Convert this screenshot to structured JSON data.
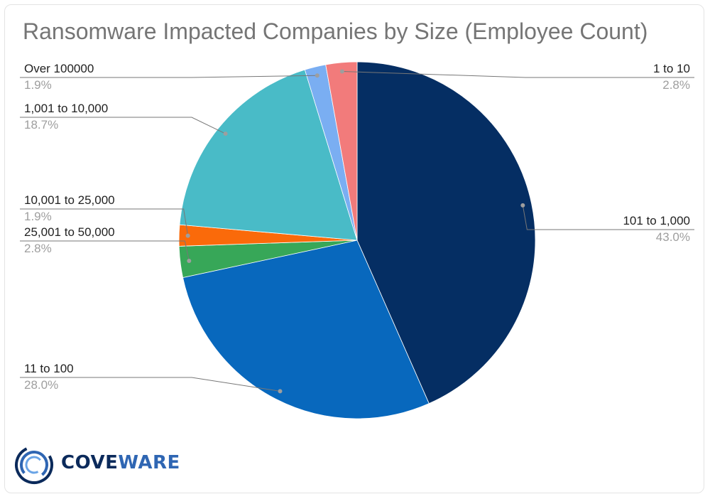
{
  "chart_data": {
    "type": "pie",
    "title": "Ransomware Impacted Companies by Size (Employee Count)",
    "start_angle_deg": 0,
    "direction": "clockwise",
    "slices": [
      {
        "label": "101 to 1,000",
        "value": 43.0,
        "display": "43.0%",
        "color": "#052e63"
      },
      {
        "label": "11 to 100",
        "value": 28.0,
        "display": "28.0%",
        "color": "#0868bd"
      },
      {
        "label": "25,001 to 50,000",
        "value": 2.8,
        "display": "2.8%",
        "color": "#37a758"
      },
      {
        "label": "10,001 to 25,000",
        "value": 1.9,
        "display": "1.9%",
        "color": "#fa6a0a"
      },
      {
        "label": "1,001 to 10,000",
        "value": 18.7,
        "display": "18.7%",
        "color": "#49bbc7"
      },
      {
        "label": "Over 100000",
        "value": 1.9,
        "display": "1.9%",
        "color": "#7aaef2"
      },
      {
        "label": "1 to 10",
        "value": 2.8,
        "display": "2.8%",
        "color": "#f27b7b"
      }
    ],
    "legend": "labels with leader lines"
  },
  "logo": {
    "text_main": "COVE",
    "text_accent": "WARE"
  }
}
